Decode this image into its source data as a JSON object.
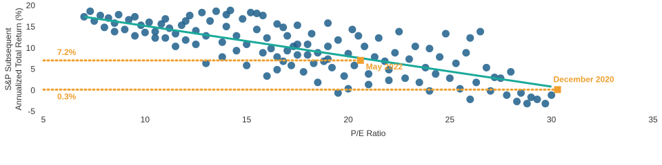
{
  "chart_data": {
    "type": "scatter",
    "x_label": "P/E Ratio",
    "y_label": [
      "S&P Subsequent",
      "Annualized Total Return (%)"
    ],
    "xlim": [
      5,
      35
    ],
    "xticks": [
      5,
      10,
      15,
      20,
      25,
      30,
      35
    ],
    "ylim": [
      -5,
      20
    ],
    "yticks": [
      -5,
      0,
      5,
      10,
      15,
      20
    ],
    "color": "#1f5f8b",
    "x": [
      7,
      7.3,
      7.5,
      7.8,
      8,
      8.2,
      8.5,
      8.7,
      9,
      9.2,
      9.5,
      9.8,
      10,
      10.2,
      10.5,
      10.8,
      11,
      11.2,
      11.5,
      11.8,
      12,
      12.2,
      12.5,
      12.8,
      13,
      13.2,
      13.5,
      13.8,
      14,
      14.2,
      14.5,
      14.8,
      15,
      15.2,
      15.5,
      15.8,
      16,
      16.2,
      16.5,
      16.8,
      17,
      17.2,
      17.5,
      17.8,
      18,
      18.2,
      18.5,
      18.8,
      19,
      19.2,
      19.5,
      19.8,
      20,
      20.3,
      20.5,
      20.8,
      21,
      21.3,
      21.5,
      21.8,
      22,
      22.3,
      22.5,
      22.8,
      23,
      23.3,
      23.5,
      23.8,
      24,
      24.3,
      24.5,
      24.8,
      25,
      25.3,
      25.5,
      25.8,
      26,
      26.3,
      26.5,
      26.8,
      27,
      27.5,
      27.8,
      28,
      28.3,
      28.5,
      28.8,
      29,
      29.3,
      29.7,
      30,
      16.5,
      17,
      17.5,
      18,
      18.5,
      19,
      17.3,
      18.3,
      16.8,
      15.8,
      14.5,
      13.8,
      12.5,
      11.5,
      10.5,
      9.5,
      8.5,
      13,
      15,
      16,
      19.5,
      20,
      21,
      22,
      24,
      26,
      27.2,
      14,
      15.5,
      12,
      11,
      17.5,
      16.5,
      19,
      20.2
    ],
    "values": [
      17.5,
      18.8,
      16.5,
      17.8,
      15,
      17.2,
      16,
      18,
      14.5,
      16.8,
      17.5,
      15.5,
      13.8,
      16.2,
      14,
      15.8,
      12.5,
      14.8,
      13.5,
      15.5,
      12,
      17.8,
      14.2,
      18.5,
      13,
      16.5,
      18.8,
      11.5,
      15.2,
      19,
      13,
      17,
      11,
      18.5,
      14.5,
      17.8,
      12.5,
      10,
      8,
      15,
      9.5,
      6,
      11,
      4.5,
      8.5,
      13.5,
      2,
      7,
      10.5,
      5.5,
      12,
      3.5,
      8.8,
      6,
      13,
      10.5,
      4,
      8,
      12.5,
      7,
      5,
      9,
      14,
      3,
      7.5,
      10.5,
      2,
      5.5,
      10,
      4,
      8,
      13.5,
      3,
      6.5,
      0.5,
      9,
      12.5,
      2,
      14,
      5.5,
      0,
      3,
      -1,
      4.5,
      -2.5,
      -0.5,
      -3,
      -1.5,
      -2,
      -3,
      -1,
      5,
      13,
      8.5,
      11,
      9,
      7.5,
      10.5,
      6.5,
      7,
      9,
      9.5,
      8,
      11,
      10.5,
      12.5,
      13,
      14,
      6.5,
      6,
      3.5,
      -0.5,
      0.5,
      1.5,
      2.5,
      0,
      -2,
      3.2,
      18,
      18.3,
      16.5,
      17,
      15.5,
      15.8,
      16,
      14.5
    ],
    "trend_line": {
      "x": [
        7,
        30
      ],
      "values": [
        17.5,
        1
      ],
      "color": "#1aa99a"
    },
    "markers": [
      {
        "label": "May 2022",
        "x": 20.6,
        "value": 7.2,
        "value_label": "7.2%",
        "color": "#f0a030"
      },
      {
        "label": "December 2020",
        "x": 30.3,
        "value": 0.3,
        "value_label": "0.3%",
        "color": "#f0a030"
      }
    ]
  }
}
